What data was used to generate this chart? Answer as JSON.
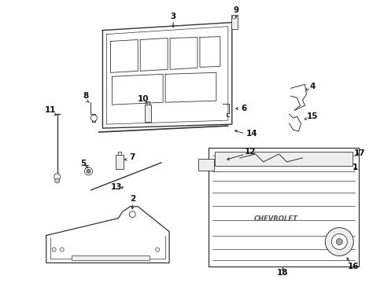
{
  "background_color": "#ffffff",
  "line_color": "#333333",
  "label_fontsize": 7.5,
  "label_fontweight": "bold",
  "fig_w": 4.89,
  "fig_h": 3.6,
  "dpi": 100
}
